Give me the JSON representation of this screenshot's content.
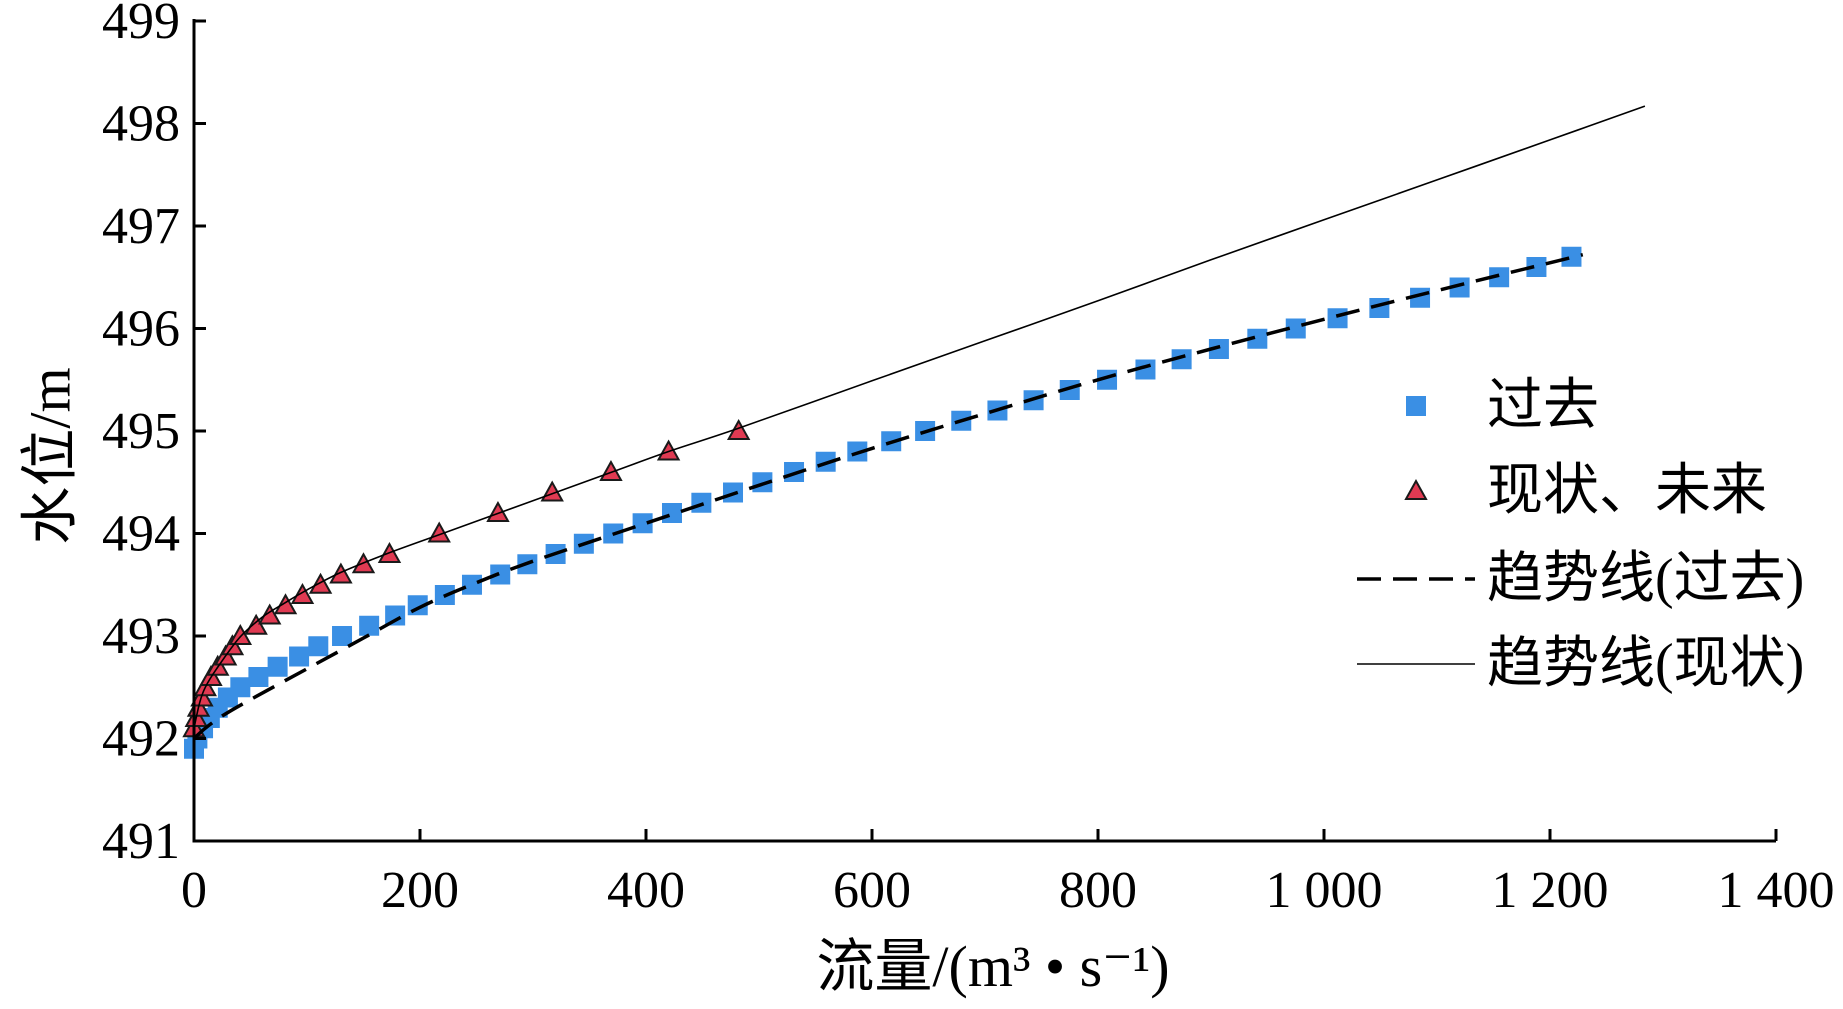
{
  "chart_data": {
    "type": "scatter",
    "xlabel": "流量/(m³ • s⁻¹)",
    "ylabel": "水位/m",
    "xlim": [
      0,
      1400
    ],
    "ylim": [
      491,
      499
    ],
    "xticks": [
      0,
      200,
      400,
      600,
      800,
      1000,
      1200,
      1400
    ],
    "xtick_labels": [
      "0",
      "200",
      "400",
      "600",
      "800",
      "1 000",
      "1 200",
      "1 400"
    ],
    "yticks": [
      491,
      492,
      493,
      494,
      495,
      496,
      497,
      498,
      499
    ],
    "ytick_labels": [
      "491",
      "492",
      "493",
      "494",
      "495",
      "496",
      "497",
      "498",
      "499"
    ],
    "grid": false,
    "legend": "right",
    "series": [
      {
        "name": "过去",
        "type": "scatter",
        "marker": "square",
        "color": "#3a8fe4",
        "x": [
          0,
          3,
          8,
          14,
          21,
          30,
          41,
          57,
          74,
          93,
          110,
          131,
          155,
          178,
          198,
          222,
          246,
          271,
          295,
          320,
          345,
          371,
          397,
          423,
          449,
          477,
          503,
          531,
          559,
          587,
          617,
          647,
          679,
          711,
          743,
          775,
          808,
          842,
          874,
          907,
          941,
          975,
          1012,
          1049,
          1085,
          1120,
          1155,
          1188,
          1219
        ],
        "y": [
          491.9,
          492.0,
          492.1,
          492.2,
          492.3,
          492.4,
          492.5,
          492.6,
          492.7,
          492.8,
          492.9,
          493.0,
          493.1,
          493.2,
          493.3,
          493.4,
          493.5,
          493.6,
          493.7,
          493.8,
          493.9,
          494.0,
          494.1,
          494.2,
          494.3,
          494.4,
          494.5,
          494.6,
          494.7,
          494.8,
          494.9,
          495.0,
          495.1,
          495.2,
          495.3,
          495.4,
          495.5,
          495.6,
          495.7,
          495.8,
          495.9,
          496.0,
          496.1,
          496.2,
          496.3,
          496.4,
          496.5,
          496.6,
          496.7
        ]
      },
      {
        "name": "现状、未来",
        "type": "scatter",
        "marker": "triangle",
        "color": "#e03a52",
        "edge_color": "#1a1a1a",
        "x": [
          0,
          2,
          4,
          7,
          10,
          15,
          21,
          28,
          34,
          41,
          55,
          67,
          81,
          96,
          112,
          130,
          150,
          173,
          217,
          269,
          317,
          369,
          420,
          482
        ],
        "y": [
          492.1,
          492.2,
          492.3,
          492.4,
          492.5,
          492.6,
          492.7,
          492.8,
          492.9,
          493.0,
          493.1,
          493.2,
          493.3,
          493.4,
          493.5,
          493.6,
          493.7,
          493.8,
          494.0,
          494.2,
          494.4,
          494.6,
          494.8,
          495.0
        ]
      },
      {
        "name": "趋势线(过去)",
        "type": "line",
        "dashed": true,
        "color": "#000000",
        "x": [
          0,
          10,
          25,
          50,
          100,
          150,
          200,
          250,
          300,
          400,
          500,
          600,
          700,
          800,
          900,
          1000,
          1100,
          1229
        ],
        "y": [
          492.0,
          492.1,
          492.22,
          492.38,
          492.68,
          492.98,
          493.28,
          493.52,
          493.73,
          494.1,
          494.47,
          494.83,
          495.17,
          495.5,
          495.8,
          496.09,
          496.37,
          496.72
        ]
      },
      {
        "name": "趋势线(现状)",
        "type": "line",
        "dashed": false,
        "color": "#000000",
        "x": [
          0,
          5,
          10,
          20,
          40,
          60,
          80,
          100,
          130,
          170,
          220,
          270,
          320,
          370,
          420,
          480,
          600,
          700,
          800,
          900,
          1000,
          1100,
          1200,
          1284
        ],
        "y": [
          492.1,
          492.35,
          492.5,
          492.68,
          492.98,
          493.18,
          493.32,
          493.45,
          493.62,
          493.8,
          494.0,
          494.2,
          494.4,
          494.6,
          494.8,
          495.02,
          495.49,
          495.88,
          496.27,
          496.67,
          497.06,
          497.45,
          497.84,
          498.17
        ]
      }
    ]
  }
}
